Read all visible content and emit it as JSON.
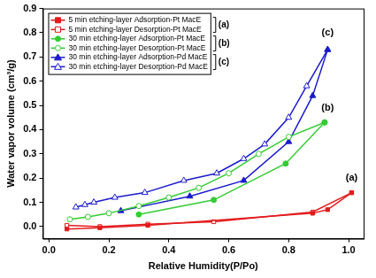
{
  "chart_data": {
    "type": "line",
    "x_label": "Relative Humidity(P/Po)",
    "y_label": "Water vapor volume (cm³/g)",
    "xlim": [
      -0.02,
      1.05
    ],
    "ylim": [
      -0.05,
      0.9
    ],
    "xticks": [
      {
        "value": 0,
        "label": "0.0"
      },
      {
        "value": 0.2,
        "label": "0.2"
      },
      {
        "value": 0.4,
        "label": "0.4"
      },
      {
        "value": 0.6,
        "label": "0.6"
      },
      {
        "value": 0.8,
        "label": "0.8"
      },
      {
        "value": 1,
        "label": "1.0"
      }
    ],
    "yticks": [
      {
        "value": 0,
        "label": "0.0"
      },
      {
        "value": 0.1,
        "label": "0.1"
      },
      {
        "value": 0.2,
        "label": "0.2"
      },
      {
        "value": 0.3,
        "label": "0.3"
      },
      {
        "value": 0.4,
        "label": "0.4"
      },
      {
        "value": 0.5,
        "label": "0.5"
      },
      {
        "value": 0.6,
        "label": "0.6"
      },
      {
        "value": 0.7,
        "label": "0.7"
      },
      {
        "value": 0.8,
        "label": "0.8"
      },
      {
        "value": 0.9,
        "label": "0.9"
      }
    ],
    "grid": false,
    "legend": "top-left",
    "series": [
      {
        "name": "5 min etching-layer Adsorption-Pt MacE",
        "group": "(a)",
        "color": "#e31a1c",
        "marker": "square",
        "x": [
          0.06,
          0.17,
          0.33,
          0.88,
          0.93,
          1.01
        ],
        "values": [
          -0.01,
          -0.005,
          0.005,
          0.055,
          0.07,
          0.14
        ]
      },
      {
        "name": "5 min etching-layer Desorption-Pt MacE",
        "group": "(a)",
        "color": "#e31a1c",
        "marker": "square_open",
        "x": [
          1.01,
          0.88,
          0.55,
          0.33,
          0.17,
          0.06
        ],
        "values": [
          0.14,
          0.06,
          0.02,
          0.01,
          0.0,
          0.005
        ]
      },
      {
        "name": "30 min etching-layer Adsorption-Pt MacE",
        "group": "(b)",
        "color": "#33cc33",
        "marker": "circle",
        "x": [
          0.3,
          0.55,
          0.79,
          0.92
        ],
        "values": [
          0.05,
          0.11,
          0.26,
          0.43
        ]
      },
      {
        "name": "30 min etching-layer Desorption-Pt MacE",
        "group": "(b)",
        "color": "#33cc33",
        "marker": "circle_open",
        "x": [
          0.92,
          0.8,
          0.7,
          0.6,
          0.5,
          0.4,
          0.3,
          0.2,
          0.13,
          0.07
        ],
        "values": [
          0.43,
          0.37,
          0.3,
          0.22,
          0.16,
          0.12,
          0.085,
          0.055,
          0.04,
          0.03
        ]
      },
      {
        "name": "30 min etching-layer Adsorption-Pd MacE",
        "group": "(c)",
        "color": "#1a1acc",
        "marker": "triangle",
        "x": [
          0.24,
          0.47,
          0.65,
          0.8,
          0.88,
          0.93
        ],
        "values": [
          0.065,
          0.125,
          0.19,
          0.35,
          0.54,
          0.73
        ]
      },
      {
        "name": "30 min etching-layer Desorption-Pd MacE",
        "group": "(c)",
        "color": "#1a1acc",
        "marker": "triangle_open",
        "x": [
          0.93,
          0.86,
          0.8,
          0.72,
          0.65,
          0.56,
          0.45,
          0.32,
          0.22,
          0.15,
          0.12,
          0.09
        ],
        "values": [
          0.73,
          0.58,
          0.45,
          0.34,
          0.28,
          0.22,
          0.19,
          0.14,
          0.12,
          0.1,
          0.09,
          0.08
        ]
      }
    ],
    "annotations": [
      {
        "text": "(a)",
        "x": 1.01,
        "y": 0.2
      },
      {
        "text": "(b)",
        "x": 0.93,
        "y": 0.49
      },
      {
        "text": "(c)",
        "x": 0.93,
        "y": 0.8
      }
    ]
  }
}
